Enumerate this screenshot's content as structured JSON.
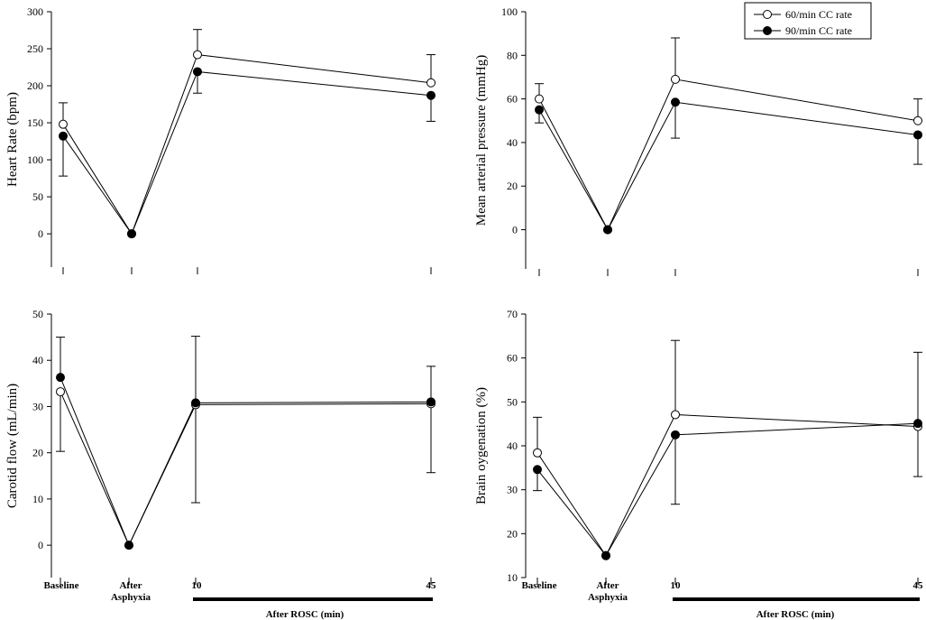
{
  "legend": {
    "series_60": "60/min CC rate",
    "series_90": "90/min CC rate"
  },
  "x_axis": {
    "categories": [
      "Baseline",
      "After\nAsphyxia",
      "10",
      "45"
    ],
    "rosc_label": "After ROSC (min)"
  },
  "chart_data": [
    {
      "type": "line",
      "title": "",
      "ylabel": "Heart Rate (bpm)",
      "ylim": [
        -45,
        300
      ],
      "yticks": [
        0,
        50,
        100,
        150,
        200,
        250,
        300
      ],
      "categories": [
        "Baseline",
        "After Asphyxia",
        "10",
        "45"
      ],
      "series": [
        {
          "name": "60/min CC rate",
          "marker": "open",
          "values": [
            148,
            0,
            242,
            204
          ],
          "err_up": [
            177,
            null,
            276,
            242
          ],
          "err_down": [
            null,
            null,
            null,
            null
          ]
        },
        {
          "name": "90/min CC rate",
          "marker": "filled",
          "values": [
            132,
            0,
            219,
            187
          ],
          "err_up": [
            null,
            null,
            null,
            null
          ],
          "err_down": [
            78,
            null,
            190,
            152
          ]
        }
      ]
    },
    {
      "type": "line",
      "title": "",
      "ylabel": "Mean arterial pressure (mmHg)",
      "ylim": [
        -18,
        100
      ],
      "yticks": [
        0,
        20,
        40,
        60,
        80,
        100
      ],
      "categories": [
        "Baseline",
        "After Asphyxia",
        "10",
        "45"
      ],
      "series": [
        {
          "name": "60/min CC rate",
          "marker": "open",
          "values": [
            60,
            0,
            69,
            50
          ],
          "err_up": [
            67,
            null,
            88,
            60
          ],
          "err_down": [
            null,
            null,
            null,
            null
          ]
        },
        {
          "name": "90/min CC rate",
          "marker": "filled",
          "values": [
            55,
            0,
            58.5,
            43.5
          ],
          "err_up": [
            null,
            null,
            null,
            null
          ],
          "err_down": [
            49,
            null,
            42,
            30
          ]
        }
      ]
    },
    {
      "type": "line",
      "title": "",
      "ylabel": "Carotid flow (mL/min)",
      "ylim": [
        -7,
        50
      ],
      "yticks": [
        0,
        10,
        20,
        30,
        40,
        50
      ],
      "categories": [
        "Baseline",
        "After Asphyxia",
        "10",
        "45"
      ],
      "series": [
        {
          "name": "60/min CC rate",
          "marker": "open",
          "values": [
            33.2,
            0,
            30.4,
            30.6
          ],
          "err_up": [
            null,
            null,
            null,
            null
          ],
          "err_down": [
            20.3,
            null,
            9.2,
            15.7
          ]
        },
        {
          "name": "90/min CC rate",
          "marker": "filled",
          "values": [
            36.3,
            0,
            30.8,
            31.0
          ],
          "err_up": [
            45,
            null,
            45.2,
            38.7
          ],
          "err_down": [
            null,
            null,
            null,
            null
          ]
        }
      ]
    },
    {
      "type": "line",
      "title": "",
      "ylabel": "Brain oygenation (%)",
      "ylim": [
        10,
        70
      ],
      "yticks": [
        10,
        20,
        30,
        40,
        50,
        60,
        70
      ],
      "categories": [
        "Baseline",
        "After Asphyxia",
        "10",
        "45"
      ],
      "series": [
        {
          "name": "60/min CC rate",
          "marker": "open",
          "values": [
            38.4,
            15,
            47.1,
            44.4
          ],
          "err_up": [
            46.5,
            null,
            64,
            null
          ],
          "err_down": [
            null,
            null,
            null,
            33
          ]
        },
        {
          "name": "90/min CC rate",
          "marker": "filled",
          "values": [
            34.6,
            15,
            42.5,
            45.1
          ],
          "err_up": [
            null,
            null,
            null,
            61.3
          ],
          "err_down": [
            29.8,
            null,
            26.7,
            null
          ]
        }
      ]
    }
  ]
}
